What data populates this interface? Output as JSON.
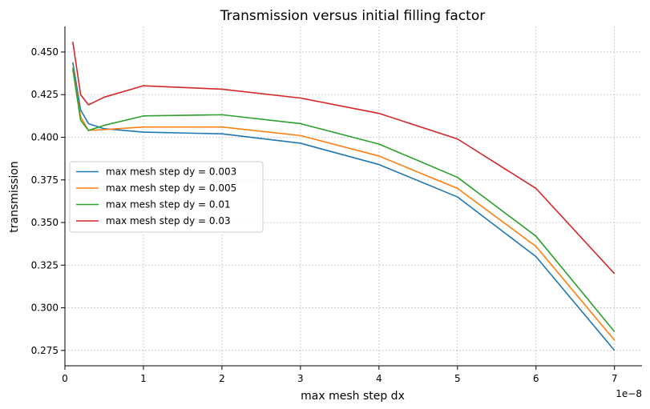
{
  "chart_data": {
    "type": "line",
    "title": "Transmission versus initial filling factor",
    "xlabel": "max mesh step dx",
    "ylabel": "transmission",
    "x_offset_label": "1e−8",
    "x_scale_factor": 1e-08,
    "xlim": [
      0,
      7.35
    ],
    "ylim": [
      0.266,
      0.465
    ],
    "x_ticks": [
      0,
      1,
      2,
      3,
      4,
      5,
      6,
      7
    ],
    "y_ticks": [
      0.275,
      0.3,
      0.325,
      0.35,
      0.375,
      0.4,
      0.425,
      0.45
    ],
    "y_tick_labels": [
      "0.275",
      "0.300",
      "0.325",
      "0.350",
      "0.375",
      "0.400",
      "0.425",
      "0.450"
    ],
    "grid": true,
    "legend_position": "center-left",
    "x": [
      0.1,
      0.2,
      0.3,
      0.5,
      1,
      2,
      3,
      4,
      5,
      6,
      7
    ],
    "series": [
      {
        "name": "max mesh step dy = 0.003",
        "color": "#1f77b4",
        "values": [
          0.444,
          0.416,
          0.408,
          0.405,
          0.403,
          0.402,
          0.3965,
          0.384,
          0.365,
          0.33,
          0.275
        ]
      },
      {
        "name": "max mesh step dy = 0.005",
        "color": "#ff7f0e",
        "values": [
          0.441,
          0.412,
          0.404,
          0.4045,
          0.406,
          0.406,
          0.401,
          0.389,
          0.37,
          0.336,
          0.281
        ]
      },
      {
        "name": "max mesh step dy = 0.01",
        "color": "#2ca02c",
        "values": [
          0.44,
          0.41,
          0.404,
          0.407,
          0.4125,
          0.4132,
          0.408,
          0.396,
          0.3765,
          0.342,
          0.286
        ]
      },
      {
        "name": "max mesh step dy = 0.03",
        "color": "#d62728",
        "values": [
          0.456,
          0.425,
          0.419,
          0.4235,
          0.4302,
          0.4282,
          0.423,
          0.414,
          0.399,
          0.37,
          0.32
        ]
      }
    ]
  }
}
